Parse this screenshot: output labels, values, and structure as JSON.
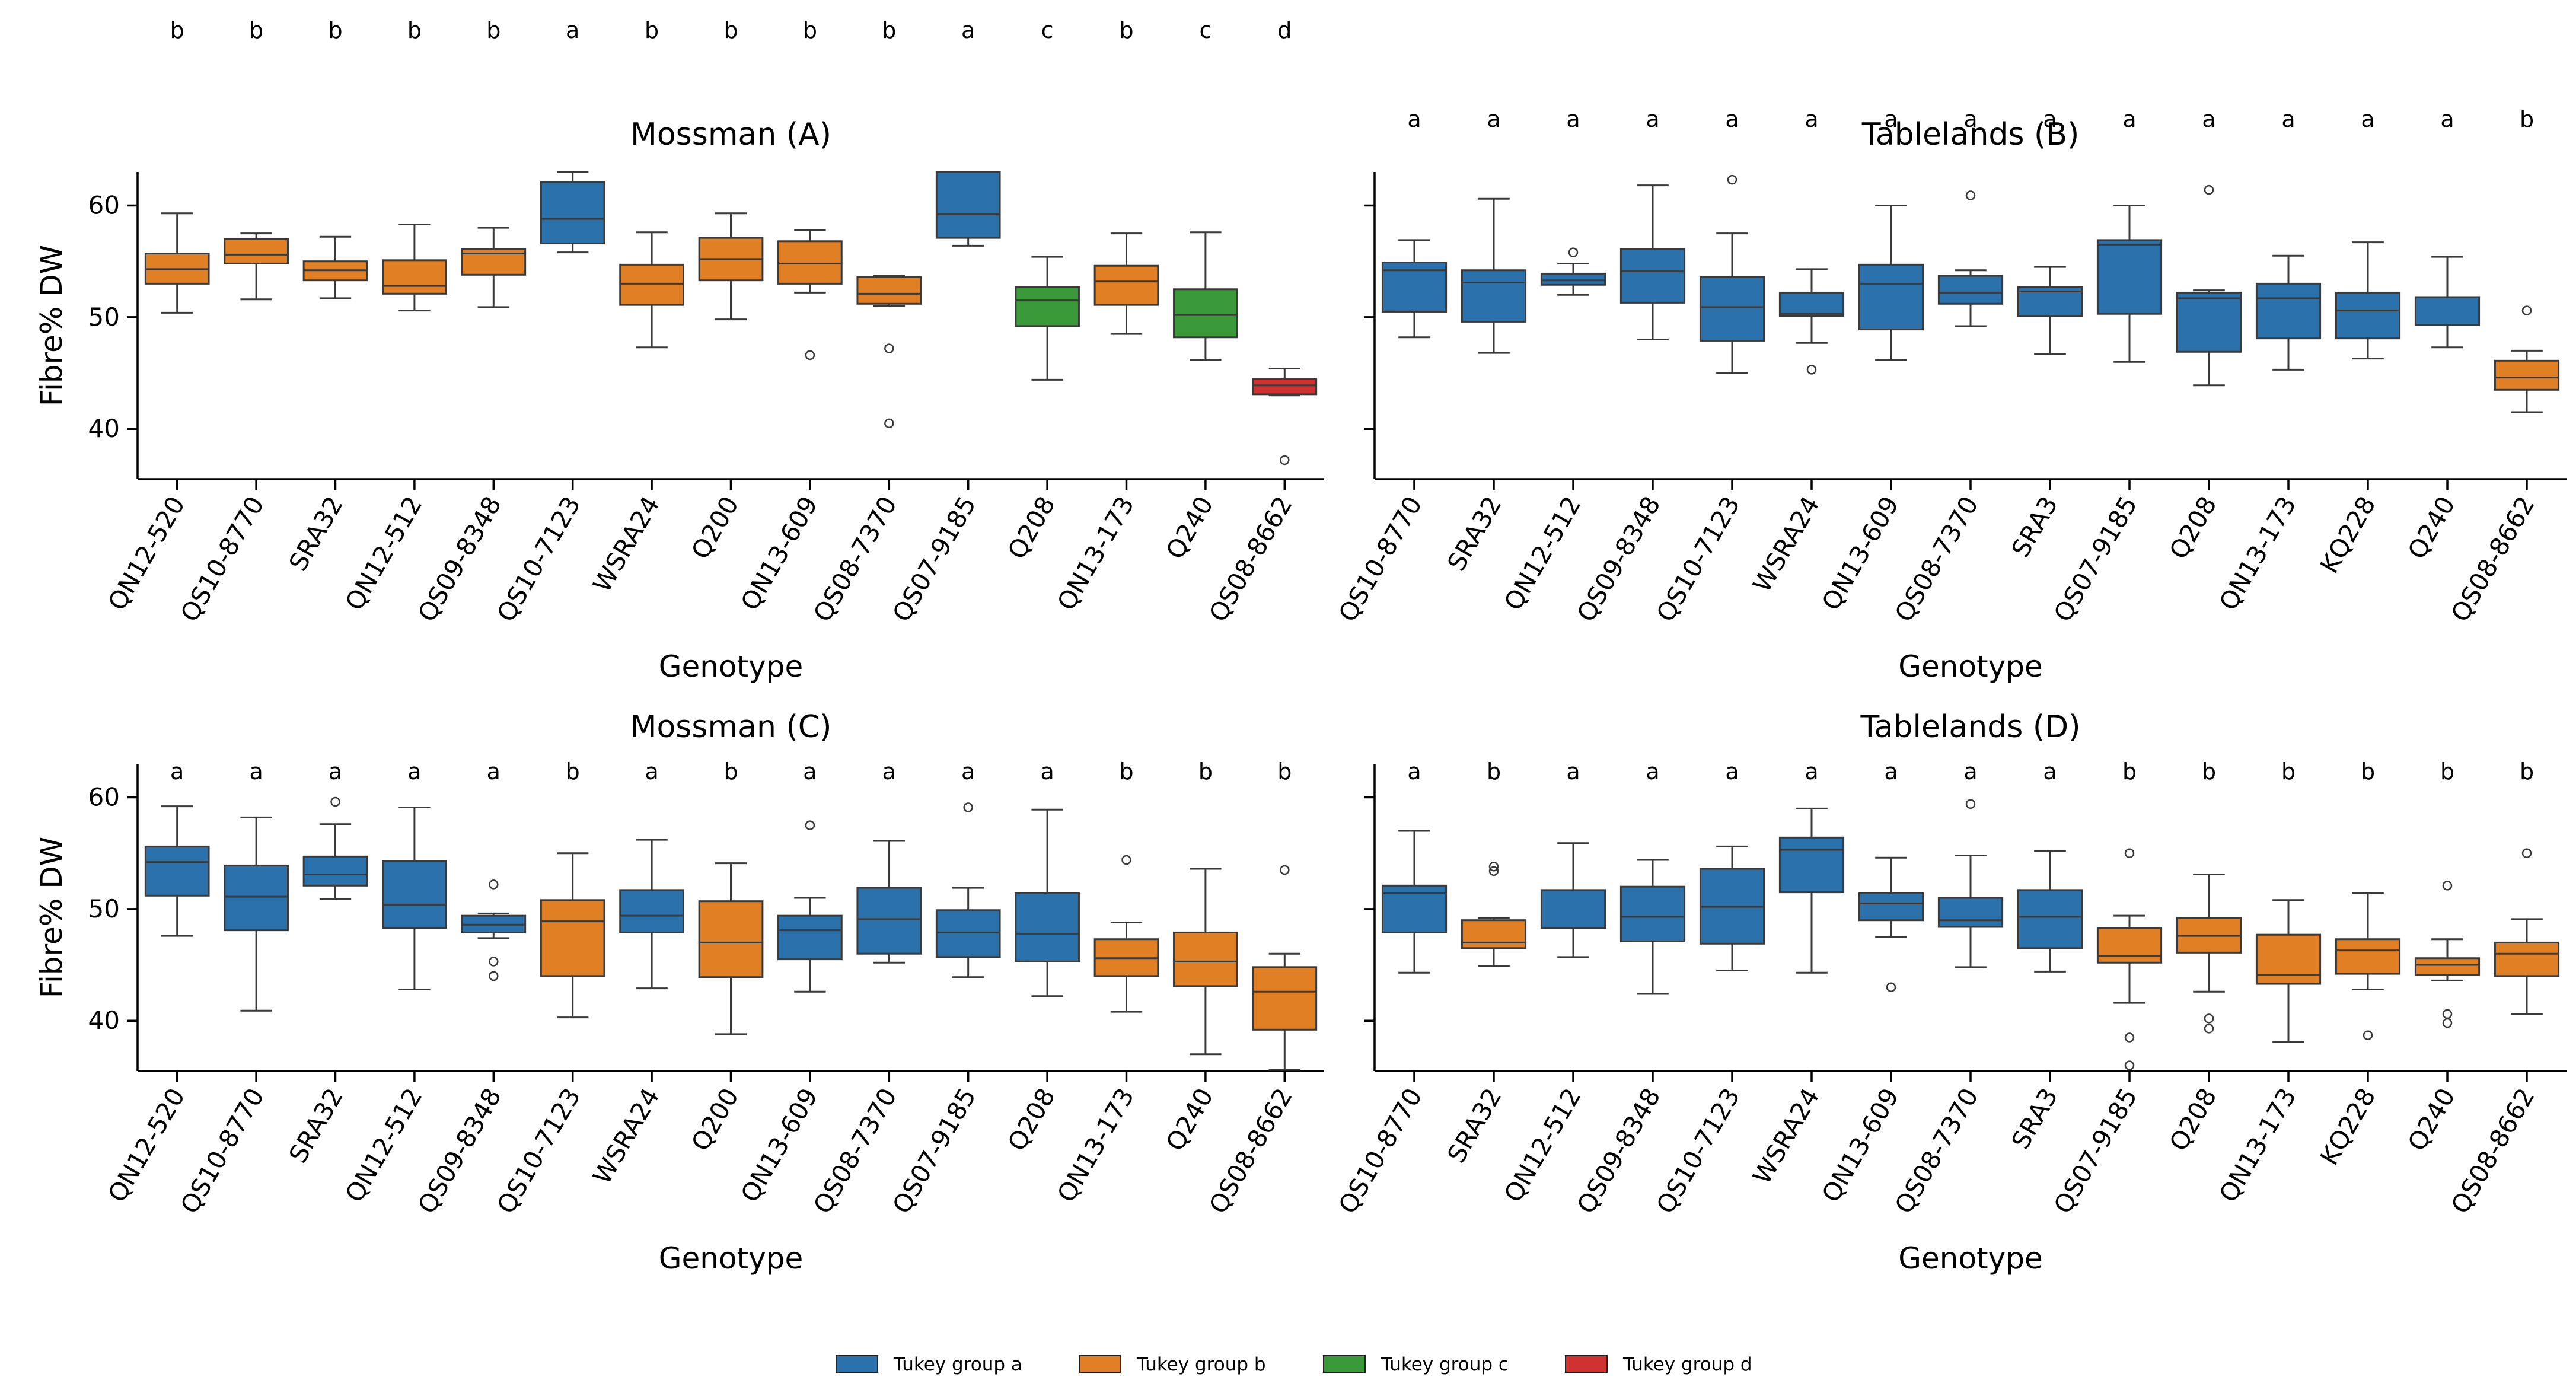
{
  "colors": {
    "a": "#2b72ac",
    "b": "#e07f24",
    "c": "#3a9a3a",
    "d": "#d03232",
    "stroke": "#3a3a3a"
  },
  "legend": [
    {
      "group": "a",
      "label": "Tukey group a"
    },
    {
      "group": "b",
      "label": "Tukey group b"
    },
    {
      "group": "c",
      "label": "Tukey group c"
    },
    {
      "group": "d",
      "label": "Tukey group d"
    }
  ],
  "chart_data": [
    {
      "type": "box",
      "title": "Mossman (A)",
      "xlabel": "Genotype",
      "ylabel": "Fibre% DW",
      "ylim": [
        35.5,
        63
      ],
      "yticks": [
        40,
        50,
        60
      ],
      "categories": [
        "QN12-520",
        "QS10-8770",
        "SRA32",
        "QN12-512",
        "QS09-8348",
        "QS10-7123",
        "WSRA24",
        "Q200",
        "QN13-609",
        "QS08-7370",
        "QS07-9185",
        "Q208",
        "QN13-173",
        "Q240",
        "QS08-8662"
      ],
      "groups": [
        "b",
        "b",
        "b",
        "b",
        "b",
        "a",
        "b",
        "b",
        "b",
        "b",
        "a",
        "c",
        "b",
        "c",
        "d"
      ],
      "boxes": [
        {
          "whislo": 50.4,
          "q1": 53.0,
          "med": 54.3,
          "q3": 55.7,
          "whishi": 59.3,
          "fliers": []
        },
        {
          "whislo": 51.6,
          "q1": 54.8,
          "med": 55.6,
          "q3": 57.0,
          "whishi": 57.5,
          "fliers": []
        },
        {
          "whislo": 51.7,
          "q1": 53.3,
          "med": 54.2,
          "q3": 55.0,
          "whishi": 57.2,
          "fliers": []
        },
        {
          "whislo": 50.6,
          "q1": 52.1,
          "med": 52.8,
          "q3": 55.1,
          "whishi": 58.3,
          "fliers": []
        },
        {
          "whislo": 50.9,
          "q1": 53.8,
          "med": 55.7,
          "q3": 56.1,
          "whishi": 58.0,
          "fliers": []
        },
        {
          "whislo": 55.8,
          "q1": 56.6,
          "med": 58.8,
          "q3": 62.1,
          "whishi": 63.0,
          "fliers": []
        },
        {
          "whislo": 47.3,
          "q1": 51.1,
          "med": 53.0,
          "q3": 54.7,
          "whishi": 57.6,
          "fliers": []
        },
        {
          "whislo": 49.8,
          "q1": 53.3,
          "med": 55.2,
          "q3": 57.1,
          "whishi": 59.3,
          "fliers": []
        },
        {
          "whislo": 52.2,
          "q1": 53.0,
          "med": 54.8,
          "q3": 56.8,
          "whishi": 57.8,
          "fliers": [
            46.6
          ]
        },
        {
          "whislo": 51.0,
          "q1": 51.2,
          "med": 52.1,
          "q3": 53.6,
          "whishi": 53.7,
          "fliers": [
            47.2,
            40.5
          ]
        },
        {
          "whislo": 56.4,
          "q1": 57.1,
          "med": 59.2,
          "q3": 63.0,
          "whishi": 63.0,
          "fliers": []
        },
        {
          "whislo": 44.4,
          "q1": 49.2,
          "med": 51.5,
          "q3": 52.7,
          "whishi": 55.4,
          "fliers": []
        },
        {
          "whislo": 48.5,
          "q1": 51.1,
          "med": 53.2,
          "q3": 54.6,
          "whishi": 57.5,
          "fliers": []
        },
        {
          "whislo": 46.2,
          "q1": 48.2,
          "med": 50.2,
          "q3": 52.5,
          "whishi": 57.6,
          "fliers": []
        },
        {
          "whislo": 43.0,
          "q1": 43.1,
          "med": 43.9,
          "q3": 44.5,
          "whishi": 45.4,
          "fliers": [
            37.2
          ]
        }
      ]
    },
    {
      "type": "box",
      "title": "Tablelands (B)",
      "xlabel": "Genotype",
      "ylabel": "",
      "ylim": [
        35.5,
        63
      ],
      "yticks": [
        40,
        50,
        60
      ],
      "categories": [
        "QS10-8770",
        "SRA32",
        "QN12-512",
        "QS09-8348",
        "QS10-7123",
        "WSRA24",
        "QN13-609",
        "QS08-7370",
        "SRA3",
        "QS07-9185",
        "Q208",
        "QN13-173",
        "KQ228",
        "Q240",
        "QS08-8662"
      ],
      "groups": [
        "a",
        "a",
        "a",
        "a",
        "a",
        "a",
        "a",
        "a",
        "a",
        "a",
        "a",
        "a",
        "a",
        "a",
        "b"
      ],
      "boxes": [
        {
          "whislo": 48.2,
          "q1": 50.5,
          "med": 54.2,
          "q3": 54.9,
          "whishi": 56.9,
          "fliers": []
        },
        {
          "whislo": 46.8,
          "q1": 49.6,
          "med": 53.1,
          "q3": 54.2,
          "whishi": 60.6,
          "fliers": []
        },
        {
          "whislo": 52.0,
          "q1": 52.9,
          "med": 53.3,
          "q3": 53.9,
          "whishi": 54.8,
          "fliers": [
            55.8
          ]
        },
        {
          "whislo": 48.0,
          "q1": 51.3,
          "med": 54.1,
          "q3": 56.1,
          "whishi": 61.8,
          "fliers": []
        },
        {
          "whislo": 45.0,
          "q1": 47.9,
          "med": 50.9,
          "q3": 53.6,
          "whishi": 57.5,
          "fliers": [
            62.3
          ]
        },
        {
          "whislo": 47.7,
          "q1": 50.1,
          "med": 50.3,
          "q3": 52.2,
          "whishi": 54.3,
          "fliers": [
            45.3
          ]
        },
        {
          "whislo": 46.2,
          "q1": 48.9,
          "med": 53.0,
          "q3": 54.7,
          "whishi": 60.0,
          "fliers": []
        },
        {
          "whislo": 49.2,
          "q1": 51.2,
          "med": 52.2,
          "q3": 53.7,
          "whishi": 54.2,
          "fliers": [
            60.9
          ]
        },
        {
          "whislo": 46.7,
          "q1": 50.1,
          "med": 52.3,
          "q3": 52.7,
          "whishi": 54.5,
          "fliers": []
        },
        {
          "whislo": 46.0,
          "q1": 50.3,
          "med": 56.5,
          "q3": 56.9,
          "whishi": 60.0,
          "fliers": []
        },
        {
          "whislo": 43.9,
          "q1": 46.9,
          "med": 51.7,
          "q3": 52.2,
          "whishi": 52.4,
          "fliers": [
            61.4
          ]
        },
        {
          "whislo": 45.3,
          "q1": 48.1,
          "med": 51.7,
          "q3": 53.0,
          "whishi": 55.5,
          "fliers": []
        },
        {
          "whislo": 46.3,
          "q1": 48.1,
          "med": 50.6,
          "q3": 52.2,
          "whishi": 56.7,
          "fliers": []
        },
        {
          "whislo": 47.3,
          "q1": 49.3,
          "med": 49.3,
          "q3": 51.8,
          "whishi": 55.4,
          "fliers": []
        },
        {
          "whislo": 41.5,
          "q1": 43.5,
          "med": 44.6,
          "q3": 46.1,
          "whishi": 47.0,
          "fliers": [
            50.6
          ]
        }
      ]
    },
    {
      "type": "box",
      "title": "Mossman (C)",
      "xlabel": "Genotype",
      "ylabel": "Fibre% DW",
      "ylim": [
        35.5,
        63
      ],
      "yticks": [
        40,
        50,
        60
      ],
      "categories": [
        "QN12-520",
        "QS10-8770",
        "SRA32",
        "QN12-512",
        "QS09-8348",
        "QS10-7123",
        "WSRA24",
        "Q200",
        "QN13-609",
        "QS08-7370",
        "QS07-9185",
        "Q208",
        "QN13-173",
        "Q240",
        "QS08-8662"
      ],
      "groups": [
        "a",
        "a",
        "a",
        "a",
        "a",
        "b",
        "a",
        "b",
        "a",
        "a",
        "a",
        "a",
        "b",
        "b",
        "b"
      ],
      "boxes": [
        {
          "whislo": 47.6,
          "q1": 51.2,
          "med": 54.2,
          "q3": 55.6,
          "whishi": 59.2,
          "fliers": []
        },
        {
          "whislo": 40.9,
          "q1": 48.1,
          "med": 51.1,
          "q3": 53.9,
          "whishi": 58.2,
          "fliers": []
        },
        {
          "whislo": 50.9,
          "q1": 52.1,
          "med": 53.1,
          "q3": 54.7,
          "whishi": 57.6,
          "fliers": [
            59.6
          ]
        },
        {
          "whislo": 42.8,
          "q1": 48.3,
          "med": 50.4,
          "q3": 54.3,
          "whishi": 59.1,
          "fliers": []
        },
        {
          "whislo": 47.4,
          "q1": 47.9,
          "med": 48.6,
          "q3": 49.4,
          "whishi": 49.6,
          "fliers": [
            52.2,
            45.3,
            44.0
          ]
        },
        {
          "whislo": 40.3,
          "q1": 44.0,
          "med": 48.9,
          "q3": 50.8,
          "whishi": 55.0,
          "fliers": []
        },
        {
          "whislo": 42.9,
          "q1": 47.9,
          "med": 49.4,
          "q3": 51.7,
          "whishi": 56.2,
          "fliers": []
        },
        {
          "whislo": 38.8,
          "q1": 43.9,
          "med": 47.0,
          "q3": 50.7,
          "whishi": 54.1,
          "fliers": []
        },
        {
          "whislo": 42.6,
          "q1": 45.5,
          "med": 48.1,
          "q3": 49.4,
          "whishi": 51.0,
          "fliers": [
            57.5
          ]
        },
        {
          "whislo": 45.2,
          "q1": 46.0,
          "med": 49.1,
          "q3": 51.9,
          "whishi": 56.1,
          "fliers": []
        },
        {
          "whislo": 43.9,
          "q1": 45.7,
          "med": 47.9,
          "q3": 49.9,
          "whishi": 51.9,
          "fliers": [
            59.1
          ]
        },
        {
          "whislo": 42.2,
          "q1": 45.3,
          "med": 47.8,
          "q3": 51.4,
          "whishi": 58.9,
          "fliers": []
        },
        {
          "whislo": 40.8,
          "q1": 44.0,
          "med": 45.6,
          "q3": 47.3,
          "whishi": 48.8,
          "fliers": [
            54.4
          ]
        },
        {
          "whislo": 37.0,
          "q1": 43.1,
          "med": 45.3,
          "q3": 47.9,
          "whishi": 53.6,
          "fliers": []
        },
        {
          "whislo": 35.6,
          "q1": 39.2,
          "med": 42.6,
          "q3": 44.8,
          "whishi": 46.0,
          "fliers": [
            53.5
          ]
        }
      ]
    },
    {
      "type": "box",
      "title": "Tablelands (D)",
      "xlabel": "Genotype",
      "ylabel": "",
      "ylim": [
        35.5,
        63
      ],
      "yticks": [
        40,
        50,
        60
      ],
      "categories": [
        "QS10-8770",
        "SRA32",
        "QN12-512",
        "QS09-8348",
        "QS10-7123",
        "WSRA24",
        "QN13-609",
        "QS08-7370",
        "SRA3",
        "QS07-9185",
        "Q208",
        "QN13-173",
        "KQ228",
        "Q240",
        "QS08-8662"
      ],
      "groups": [
        "a",
        "b",
        "a",
        "a",
        "a",
        "a",
        "a",
        "a",
        "a",
        "b",
        "b",
        "b",
        "b",
        "b",
        "b"
      ],
      "boxes": [
        {
          "whislo": 44.3,
          "q1": 47.9,
          "med": 51.4,
          "q3": 52.1,
          "whishi": 57.0,
          "fliers": []
        },
        {
          "whislo": 44.9,
          "q1": 46.5,
          "med": 47.0,
          "q3": 49.0,
          "whishi": 49.2,
          "fliers": [
            53.8,
            53.4
          ]
        },
        {
          "whislo": 45.7,
          "q1": 48.3,
          "med": 48.3,
          "q3": 51.7,
          "whishi": 55.9,
          "fliers": []
        },
        {
          "whislo": 42.4,
          "q1": 47.1,
          "med": 49.3,
          "q3": 52.0,
          "whishi": 54.4,
          "fliers": []
        },
        {
          "whislo": 44.5,
          "q1": 46.9,
          "med": 50.2,
          "q3": 53.6,
          "whishi": 55.6,
          "fliers": []
        },
        {
          "whislo": 44.3,
          "q1": 51.5,
          "med": 55.3,
          "q3": 56.4,
          "whishi": 59.0,
          "fliers": []
        },
        {
          "whislo": 47.5,
          "q1": 49.0,
          "med": 50.5,
          "q3": 51.4,
          "whishi": 54.6,
          "fliers": [
            43.0
          ]
        },
        {
          "whislo": 44.8,
          "q1": 48.4,
          "med": 49.0,
          "q3": 51.0,
          "whishi": 54.8,
          "fliers": [
            59.4
          ]
        },
        {
          "whislo": 44.4,
          "q1": 46.5,
          "med": 49.3,
          "q3": 51.7,
          "whishi": 55.2,
          "fliers": []
        },
        {
          "whislo": 41.6,
          "q1": 45.2,
          "med": 45.8,
          "q3": 48.3,
          "whishi": 49.4,
          "fliers": [
            55.0,
            38.5,
            36.0
          ]
        },
        {
          "whislo": 42.6,
          "q1": 46.1,
          "med": 47.6,
          "q3": 49.2,
          "whishi": 53.1,
          "fliers": [
            40.2,
            39.3
          ]
        },
        {
          "whislo": 38.1,
          "q1": 43.3,
          "med": 44.1,
          "q3": 47.7,
          "whishi": 50.8,
          "fliers": []
        },
        {
          "whislo": 42.8,
          "q1": 44.2,
          "med": 46.3,
          "q3": 47.3,
          "whishi": 51.4,
          "fliers": [
            38.7
          ]
        },
        {
          "whislo": 43.6,
          "q1": 44.1,
          "med": 45.0,
          "q3": 45.6,
          "whishi": 47.3,
          "fliers": [
            52.1,
            40.6,
            39.8
          ]
        },
        {
          "whislo": 40.6,
          "q1": 44.0,
          "med": 46.0,
          "q3": 47.0,
          "whishi": 49.1,
          "fliers": [
            55.0
          ]
        }
      ]
    }
  ]
}
